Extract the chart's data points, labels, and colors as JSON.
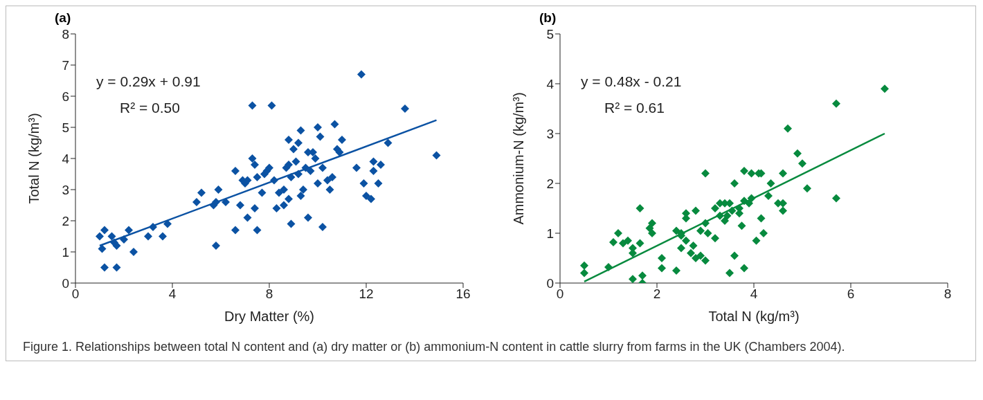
{
  "chart_data": [
    {
      "type": "scatter",
      "title": "(a)",
      "xlabel": "Dry Matter (%)",
      "ylabel": "Total N (kg/m³)",
      "xlim": [
        0,
        16
      ],
      "xticks": [
        0,
        4,
        8,
        12,
        16
      ],
      "ylim": [
        0,
        8
      ],
      "yticks": [
        0,
        1,
        2,
        3,
        4,
        5,
        6,
        7,
        8
      ],
      "grid": false,
      "legend": false,
      "annotations": [
        "y = 0.29x + 0.91",
        "R² = 0.50",
        "Figure 1. Relationships between total N content and (a) dry matter or (b) ammonium-N content in cattle slurry from farms in the UK (Chambers 2004)."
      ],
      "series": [
        {
          "marker": "diamond",
          "color": "#0b52a3",
          "x": [
            1.0,
            1.1,
            1.2,
            1.2,
            1.5,
            1.6,
            1.7,
            1.7,
            2.0,
            2.2,
            2.4,
            3.0,
            3.2,
            3.6,
            3.8,
            5.0,
            5.2,
            5.7,
            5.8,
            5.8,
            5.9,
            6.2,
            6.6,
            6.6,
            6.8,
            6.9,
            7.0,
            7.1,
            7.1,
            7.3,
            7.3,
            7.4,
            7.4,
            7.5,
            7.5,
            7.7,
            7.8,
            7.9,
            8.0,
            8.1,
            8.2,
            8.3,
            8.4,
            8.6,
            8.6,
            8.7,
            8.8,
            8.8,
            8.8,
            8.9,
            8.9,
            9.0,
            9.1,
            9.2,
            9.2,
            9.3,
            9.3,
            9.4,
            9.5,
            9.6,
            9.6,
            9.7,
            9.8,
            9.9,
            10.0,
            10.0,
            10.1,
            10.2,
            10.2,
            10.4,
            10.5,
            10.6,
            10.7,
            10.8,
            10.9,
            11.0,
            11.6,
            11.8,
            11.9,
            12.0,
            12.2,
            12.3,
            12.3,
            12.5,
            12.6,
            12.9,
            13.6,
            14.9
          ],
          "values": [
            1.5,
            1.1,
            1.7,
            0.5,
            1.5,
            1.3,
            1.2,
            0.5,
            1.4,
            1.7,
            1.0,
            1.5,
            1.8,
            1.5,
            1.9,
            2.6,
            2.9,
            2.5,
            1.2,
            2.6,
            3.0,
            2.6,
            1.7,
            3.6,
            2.5,
            3.3,
            3.2,
            2.1,
            3.3,
            4.0,
            5.7,
            3.8,
            2.4,
            1.7,
            3.4,
            2.9,
            3.5,
            3.6,
            3.7,
            5.7,
            3.3,
            2.4,
            2.9,
            2.5,
            3.0,
            3.7,
            4.6,
            3.8,
            2.7,
            1.9,
            3.4,
            4.3,
            3.9,
            4.5,
            3.5,
            4.9,
            2.8,
            3.0,
            3.7,
            4.2,
            2.1,
            3.6,
            4.2,
            4.0,
            5.0,
            3.2,
            4.7,
            3.7,
            1.8,
            3.3,
            3.0,
            3.4,
            5.1,
            4.3,
            4.2,
            4.6,
            3.7,
            6.7,
            3.2,
            2.8,
            2.7,
            3.9,
            3.6,
            3.2,
            3.8,
            4.5,
            5.6,
            4.1
          ]
        },
        {
          "type": "line",
          "marker": "none",
          "color": "#0b52a3",
          "x": [
            1.0,
            14.9
          ],
          "values": [
            1.2,
            5.23
          ]
        }
      ]
    },
    {
      "type": "scatter",
      "title": "(b)",
      "xlabel": "Total N (kg/m³)",
      "ylabel": "Ammonium-N (kg/m³)",
      "xlim": [
        0,
        8
      ],
      "xticks": [
        0,
        2,
        4,
        6,
        8
      ],
      "ylim": [
        0,
        5
      ],
      "yticks": [
        0,
        1,
        2,
        3,
        4,
        5
      ],
      "grid": false,
      "legend": false,
      "annotations": [
        "y = 0.48x - 0.21",
        "R² = 0.61"
      ],
      "series": [
        {
          "marker": "diamond",
          "color": "#078a3e",
          "x": [
            0.5,
            0.5,
            1.0,
            1.1,
            1.2,
            1.3,
            1.4,
            1.5,
            1.5,
            1.5,
            1.65,
            1.65,
            1.7,
            1.7,
            1.85,
            1.9,
            1.9,
            2.1,
            2.1,
            2.4,
            2.4,
            2.5,
            2.5,
            2.5,
            2.6,
            2.6,
            2.6,
            2.7,
            2.8,
            2.75,
            2.8,
            2.9,
            2.9,
            3.0,
            3.0,
            3.0,
            3.05,
            3.2,
            3.2,
            3.3,
            3.3,
            3.4,
            3.4,
            3.45,
            3.5,
            3.5,
            3.55,
            3.6,
            3.6,
            3.7,
            3.7,
            3.75,
            3.8,
            3.8,
            3.8,
            3.9,
            3.95,
            3.95,
            4.05,
            4.1,
            4.15,
            4.15,
            4.2,
            4.3,
            4.35,
            4.5,
            4.6,
            4.6,
            4.6,
            4.7,
            4.9,
            5.0,
            5.1,
            5.7,
            5.7,
            6.7
          ],
          "values": [
            0.35,
            0.2,
            0.32,
            0.82,
            1.0,
            0.8,
            0.85,
            0.7,
            0.6,
            0.08,
            1.5,
            0.8,
            0.15,
            0.0,
            1.1,
            1.2,
            1.0,
            0.5,
            0.3,
            0.25,
            1.05,
            1.0,
            0.95,
            0.7,
            0.85,
            1.3,
            1.4,
            0.6,
            0.5,
            0.75,
            1.45,
            1.05,
            0.55,
            0.45,
            1.2,
            2.2,
            1.0,
            1.5,
            0.9,
            1.6,
            1.35,
            1.6,
            1.25,
            1.35,
            1.6,
            0.2,
            1.45,
            2.0,
            0.55,
            1.5,
            1.4,
            1.15,
            2.25,
            1.65,
            0.3,
            1.6,
            2.2,
            1.7,
            0.85,
            2.2,
            1.3,
            2.2,
            1.0,
            1.75,
            2.0,
            1.6,
            1.6,
            2.2,
            1.45,
            3.1,
            2.6,
            2.4,
            1.9,
            3.6,
            1.7,
            3.9
          ]
        },
        {
          "type": "line",
          "marker": "none",
          "color": "#078a3e",
          "x": [
            0.5,
            6.7
          ],
          "values": [
            0.03,
            3.0
          ]
        }
      ]
    }
  ]
}
